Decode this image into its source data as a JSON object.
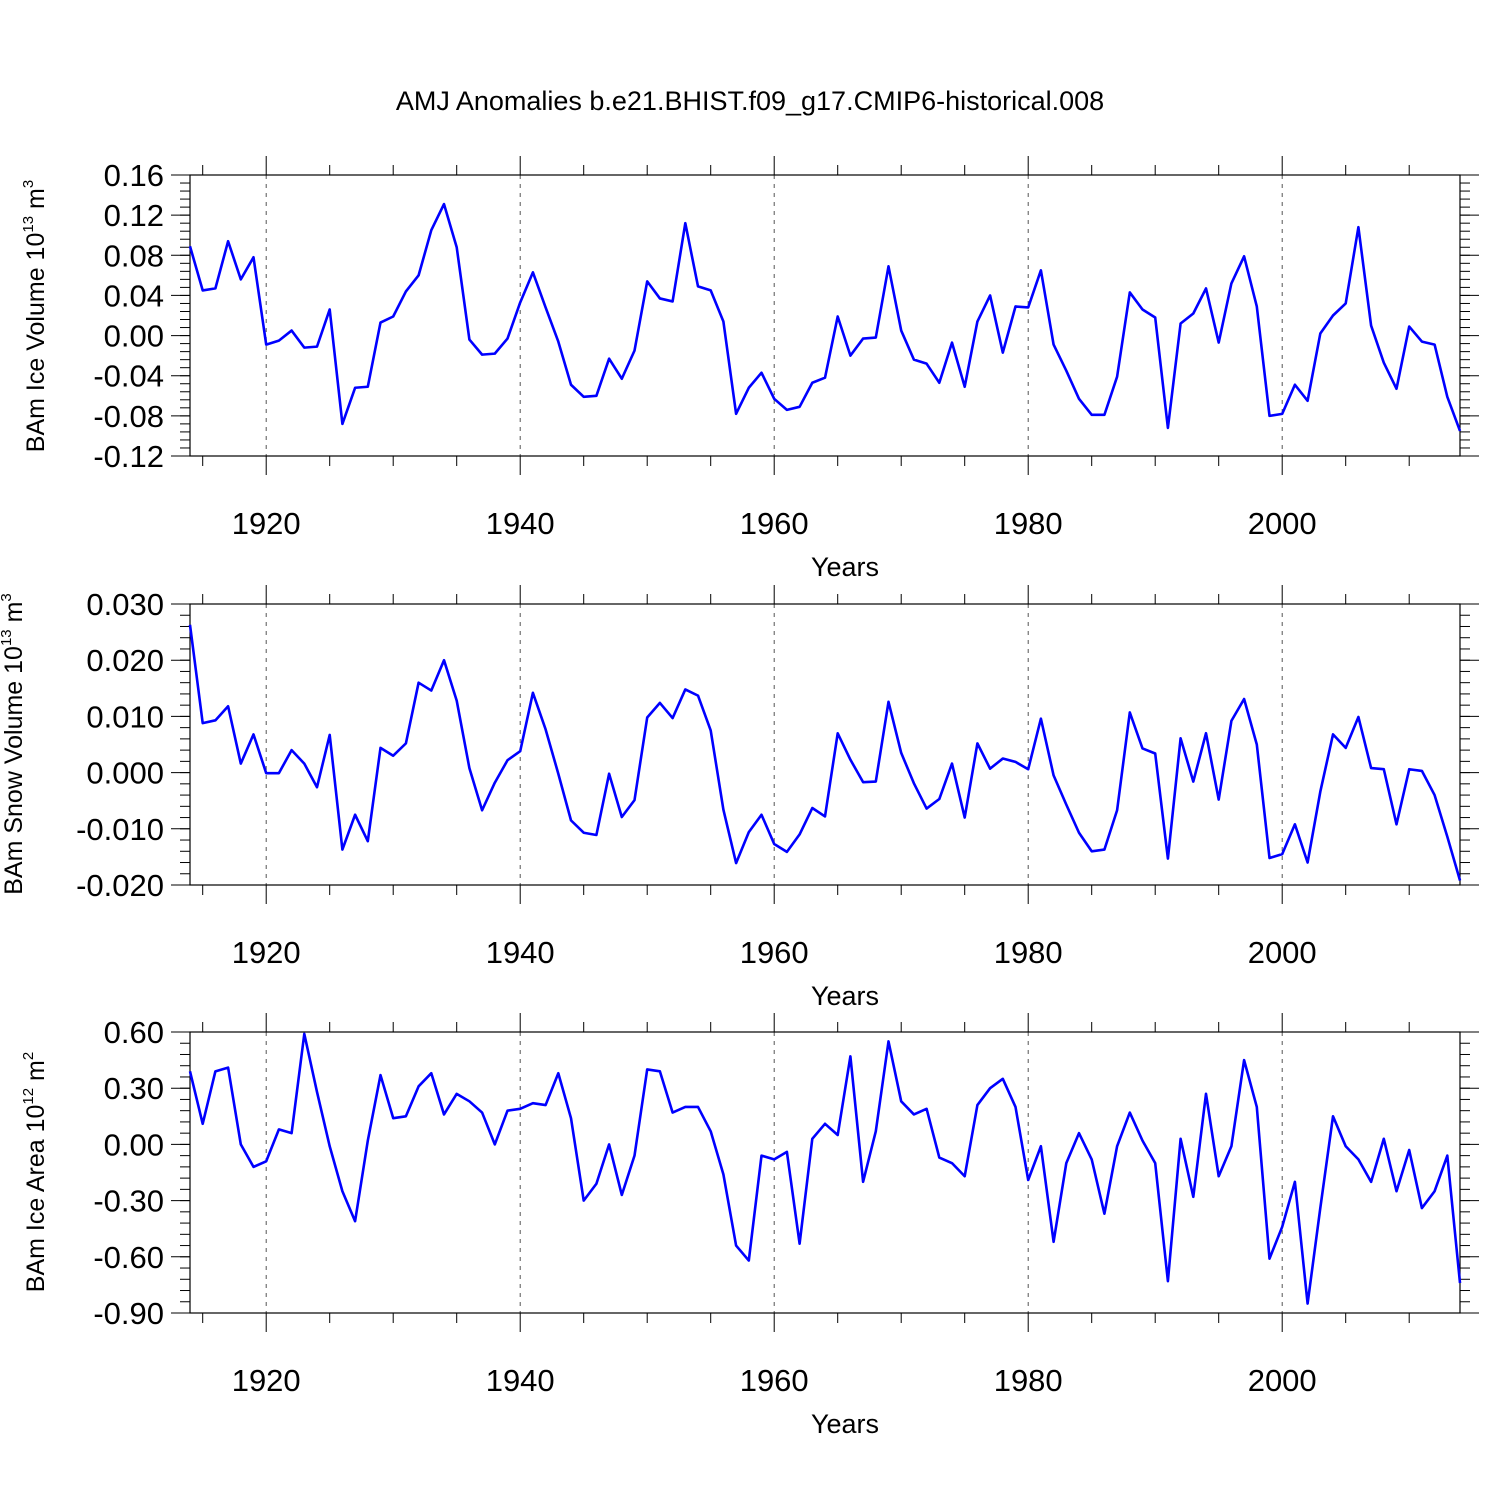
{
  "title": "AMJ Anomalies b.e21.BHIST.f09_g17.CMIP6-historical.008",
  "line_color": "#0000ff",
  "chart_data": [
    {
      "type": "line",
      "ylabel": {
        "prefix": "BAm Ice Volume 10",
        "exp": "13",
        "unit": " m",
        "unit_exp": "3"
      },
      "xlabel": "Years",
      "xlim": [
        1914,
        2014
      ],
      "ylim": [
        -0.12,
        0.16
      ],
      "xticks": [
        1920,
        1940,
        1960,
        1980,
        2000
      ],
      "yticks": [
        -0.12,
        -0.08,
        -0.04,
        0.0,
        0.04,
        0.08,
        0.12,
        0.16
      ],
      "ytick_labels": [
        "-0.12",
        "-0.08",
        "-0.04",
        "0.00",
        "0.04",
        "0.08",
        "0.12",
        "0.16"
      ],
      "yminor_step": 0.008,
      "grid": "dashed vertical lines at major x ticks",
      "x_start": 1914,
      "series": [
        {
          "values": [
            0.089,
            0.045,
            0.047,
            0.094,
            0.056,
            0.078,
            -0.009,
            -0.005,
            0.005,
            -0.012,
            -0.011,
            0.026,
            -0.088,
            -0.052,
            -0.051,
            0.013,
            0.019,
            0.044,
            0.06,
            0.105,
            0.131,
            0.088,
            -0.004,
            -0.019,
            -0.018,
            -0.003,
            0.033,
            0.063,
            0.028,
            -0.006,
            -0.049,
            -0.061,
            -0.06,
            -0.023,
            -0.043,
            -0.015,
            0.054,
            0.037,
            0.034,
            0.112,
            0.049,
            0.045,
            0.014,
            -0.078,
            -0.052,
            -0.037,
            -0.063,
            -0.074,
            -0.071,
            -0.047,
            -0.042,
            0.019,
            -0.02,
            -0.003,
            -0.002,
            0.069,
            0.005,
            -0.024,
            -0.028,
            -0.047,
            -0.007,
            -0.051,
            0.014,
            0.04,
            -0.017,
            0.029,
            0.028,
            0.065,
            -0.009,
            -0.035,
            -0.063,
            -0.079,
            -0.079,
            -0.041,
            0.043,
            0.026,
            0.018,
            -0.092,
            0.012,
            0.022,
            0.047,
            -0.007,
            0.052,
            0.079,
            0.029,
            -0.08,
            -0.078,
            -0.049,
            -0.065,
            0.002,
            0.02,
            0.032,
            0.108,
            0.01,
            -0.027,
            -0.053,
            0.009,
            -0.006,
            -0.009,
            -0.061,
            -0.095
          ]
        }
      ]
    },
    {
      "type": "line",
      "ylabel": {
        "prefix": "BAm Snow Volume 10",
        "exp": "13",
        "unit": " m",
        "unit_exp": "3"
      },
      "xlabel": "Years",
      "xlim": [
        1914,
        2014
      ],
      "ylim": [
        -0.02,
        0.03
      ],
      "xticks": [
        1920,
        1940,
        1960,
        1980,
        2000
      ],
      "yticks": [
        -0.02,
        -0.01,
        0.0,
        0.01,
        0.02,
        0.03
      ],
      "ytick_labels": [
        "-0.020",
        "-0.010",
        "0.000",
        "0.010",
        "0.020",
        "0.030"
      ],
      "yminor_step": 0.002,
      "grid": "dashed vertical lines at major x ticks",
      "x_start": 1914,
      "series": [
        {
          "values": [
            0.0263,
            0.0088,
            0.0093,
            0.0118,
            0.0016,
            0.0068,
            -0.0001,
            -0.0001,
            0.004,
            0.0016,
            -0.0026,
            0.0067,
            -0.0137,
            -0.0075,
            -0.0122,
            0.0044,
            0.003,
            0.0052,
            0.016,
            0.0146,
            0.02,
            0.0128,
            0.0008,
            -0.0067,
            -0.0018,
            0.0022,
            0.0038,
            0.0142,
            0.0077,
            -0.0002,
            -0.0085,
            -0.0107,
            -0.0111,
            -0.0002,
            -0.0079,
            -0.0049,
            0.0098,
            0.0124,
            0.0097,
            0.0148,
            0.0137,
            0.0075,
            -0.0066,
            -0.0161,
            -0.0106,
            -0.0075,
            -0.0127,
            -0.0141,
            -0.011,
            -0.0063,
            -0.0078,
            0.007,
            0.0023,
            -0.0017,
            -0.0016,
            0.0126,
            0.0035,
            -0.0019,
            -0.0064,
            -0.0047,
            0.0016,
            -0.008,
            0.0052,
            0.0007,
            0.0025,
            0.0019,
            0.0006,
            0.0096,
            -0.0005,
            -0.0057,
            -0.0107,
            -0.014,
            -0.0137,
            -0.0067,
            0.0107,
            0.0043,
            0.0034,
            -0.0153,
            0.0061,
            -0.0016,
            0.007,
            -0.0048,
            0.0092,
            0.0131,
            0.005,
            -0.0152,
            -0.0145,
            -0.0092,
            -0.016,
            -0.0034,
            0.0068,
            0.0044,
            0.0099,
            0.0008,
            0.0006,
            -0.0092,
            0.0006,
            0.0003,
            -0.004,
            -0.0114,
            -0.0192
          ]
        }
      ]
    },
    {
      "type": "line",
      "ylabel": {
        "prefix": "BAm Ice Area 10",
        "exp": "12",
        "unit": " m",
        "unit_exp": "2"
      },
      "xlabel": "Years",
      "xlim": [
        1914,
        2014
      ],
      "ylim": [
        -0.9,
        0.6
      ],
      "xticks": [
        1920,
        1940,
        1960,
        1980,
        2000
      ],
      "yticks": [
        -0.9,
        -0.6,
        -0.3,
        0.0,
        0.3,
        0.6
      ],
      "ytick_labels": [
        "-0.90",
        "-0.60",
        "-0.30",
        "0.00",
        "0.30",
        "0.60"
      ],
      "yminor_step": 0.06,
      "grid": "dashed vertical lines at major x ticks",
      "x_start": 1914,
      "series": [
        {
          "values": [
            0.39,
            0.11,
            0.39,
            0.41,
            0.0,
            -0.12,
            -0.09,
            0.08,
            0.06,
            0.59,
            0.28,
            -0.01,
            -0.25,
            -0.41,
            0.02,
            0.37,
            0.14,
            0.15,
            0.31,
            0.38,
            0.16,
            0.27,
            0.23,
            0.17,
            0.0,
            0.18,
            0.19,
            0.22,
            0.21,
            0.38,
            0.14,
            -0.3,
            -0.21,
            0.0,
            -0.27,
            -0.06,
            0.4,
            0.39,
            0.17,
            0.2,
            0.2,
            0.07,
            -0.16,
            -0.54,
            -0.62,
            -0.06,
            -0.08,
            -0.04,
            -0.53,
            0.03,
            0.11,
            0.05,
            0.47,
            -0.2,
            0.07,
            0.55,
            0.23,
            0.16,
            0.19,
            -0.07,
            -0.1,
            -0.17,
            0.21,
            0.3,
            0.35,
            0.2,
            -0.19,
            -0.01,
            -0.52,
            -0.1,
            0.06,
            -0.08,
            -0.37,
            -0.01,
            0.17,
            0.02,
            -0.1,
            -0.73,
            0.03,
            -0.28,
            0.27,
            -0.17,
            -0.01,
            0.45,
            0.2,
            -0.61,
            -0.44,
            -0.2,
            -0.85,
            -0.34,
            0.15,
            -0.01,
            -0.08,
            -0.2,
            0.03,
            -0.25,
            -0.03,
            -0.34,
            -0.25,
            -0.06,
            -0.74
          ]
        }
      ]
    }
  ]
}
